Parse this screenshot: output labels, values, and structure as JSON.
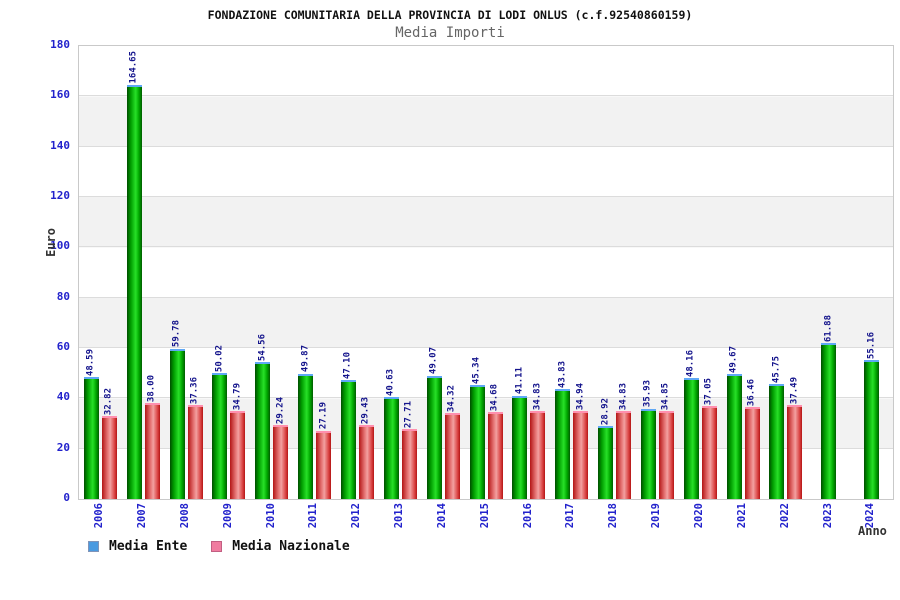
{
  "chart_data": {
    "type": "bar",
    "title": "FONDAZIONE COMUNITARIA DELLA PROVINCIA DI LODI ONLUS (c.f.92540860159)",
    "subtitle": "Media Importi",
    "xlabel": "Anno",
    "ylabel": "Euro",
    "ylim": [
      0,
      180
    ],
    "ytick_step": 20,
    "grid": true,
    "legend_position": "bottom-left",
    "categories": [
      "2006",
      "2007",
      "2008",
      "2009",
      "2010",
      "2011",
      "2012",
      "2013",
      "2014",
      "2015",
      "2016",
      "2017",
      "2018",
      "2019",
      "2020",
      "2021",
      "2022",
      "2023",
      "2024"
    ],
    "series": [
      {
        "name": "Media Ente",
        "swatch_color": "#4a9ae0",
        "bar_color": "#00c400",
        "values": [
          48.59,
          164.65,
          59.78,
          50.02,
          54.56,
          49.87,
          47.1,
          40.63,
          49.07,
          45.34,
          41.11,
          43.83,
          28.92,
          35.93,
          48.16,
          49.67,
          45.75,
          61.88,
          55.16
        ],
        "labels": [
          "48.59",
          "164.65",
          "59.78",
          "50.02",
          "54.56",
          "49.87",
          "47.10",
          "40.63",
          "49.07",
          "45.34",
          "41.11",
          "43.83",
          "28.92",
          "35.93",
          "48.16",
          "49.67",
          "45.75",
          "61.88",
          "55.16"
        ]
      },
      {
        "name": "Media Nazionale",
        "swatch_color": "#f07ca0",
        "bar_color": "#e05050",
        "values": [
          32.82,
          38.0,
          37.36,
          34.79,
          29.24,
          27.19,
          29.43,
          27.71,
          34.32,
          34.68,
          34.83,
          34.94,
          34.83,
          34.85,
          37.05,
          36.46,
          37.49,
          null,
          null
        ],
        "labels": [
          "32.82",
          "38.00",
          "37.36",
          "34.79",
          "29.24",
          "27.19",
          "29.43",
          "27.71",
          "34.32",
          "34.68",
          "34.83",
          "34.94",
          "34.83",
          "34.85",
          "37.05",
          "36.46",
          "37.49",
          null,
          null
        ]
      }
    ],
    "colors": {
      "axis_tick_text": "#2222cc",
      "value_label_text": "#14148c",
      "axis_title_text": "#333333",
      "band_fill": "#f2f2f2",
      "gridline": "#dcdcdc",
      "green_cap": "#5fa8f5",
      "red_cap": "#ff8fae"
    }
  }
}
